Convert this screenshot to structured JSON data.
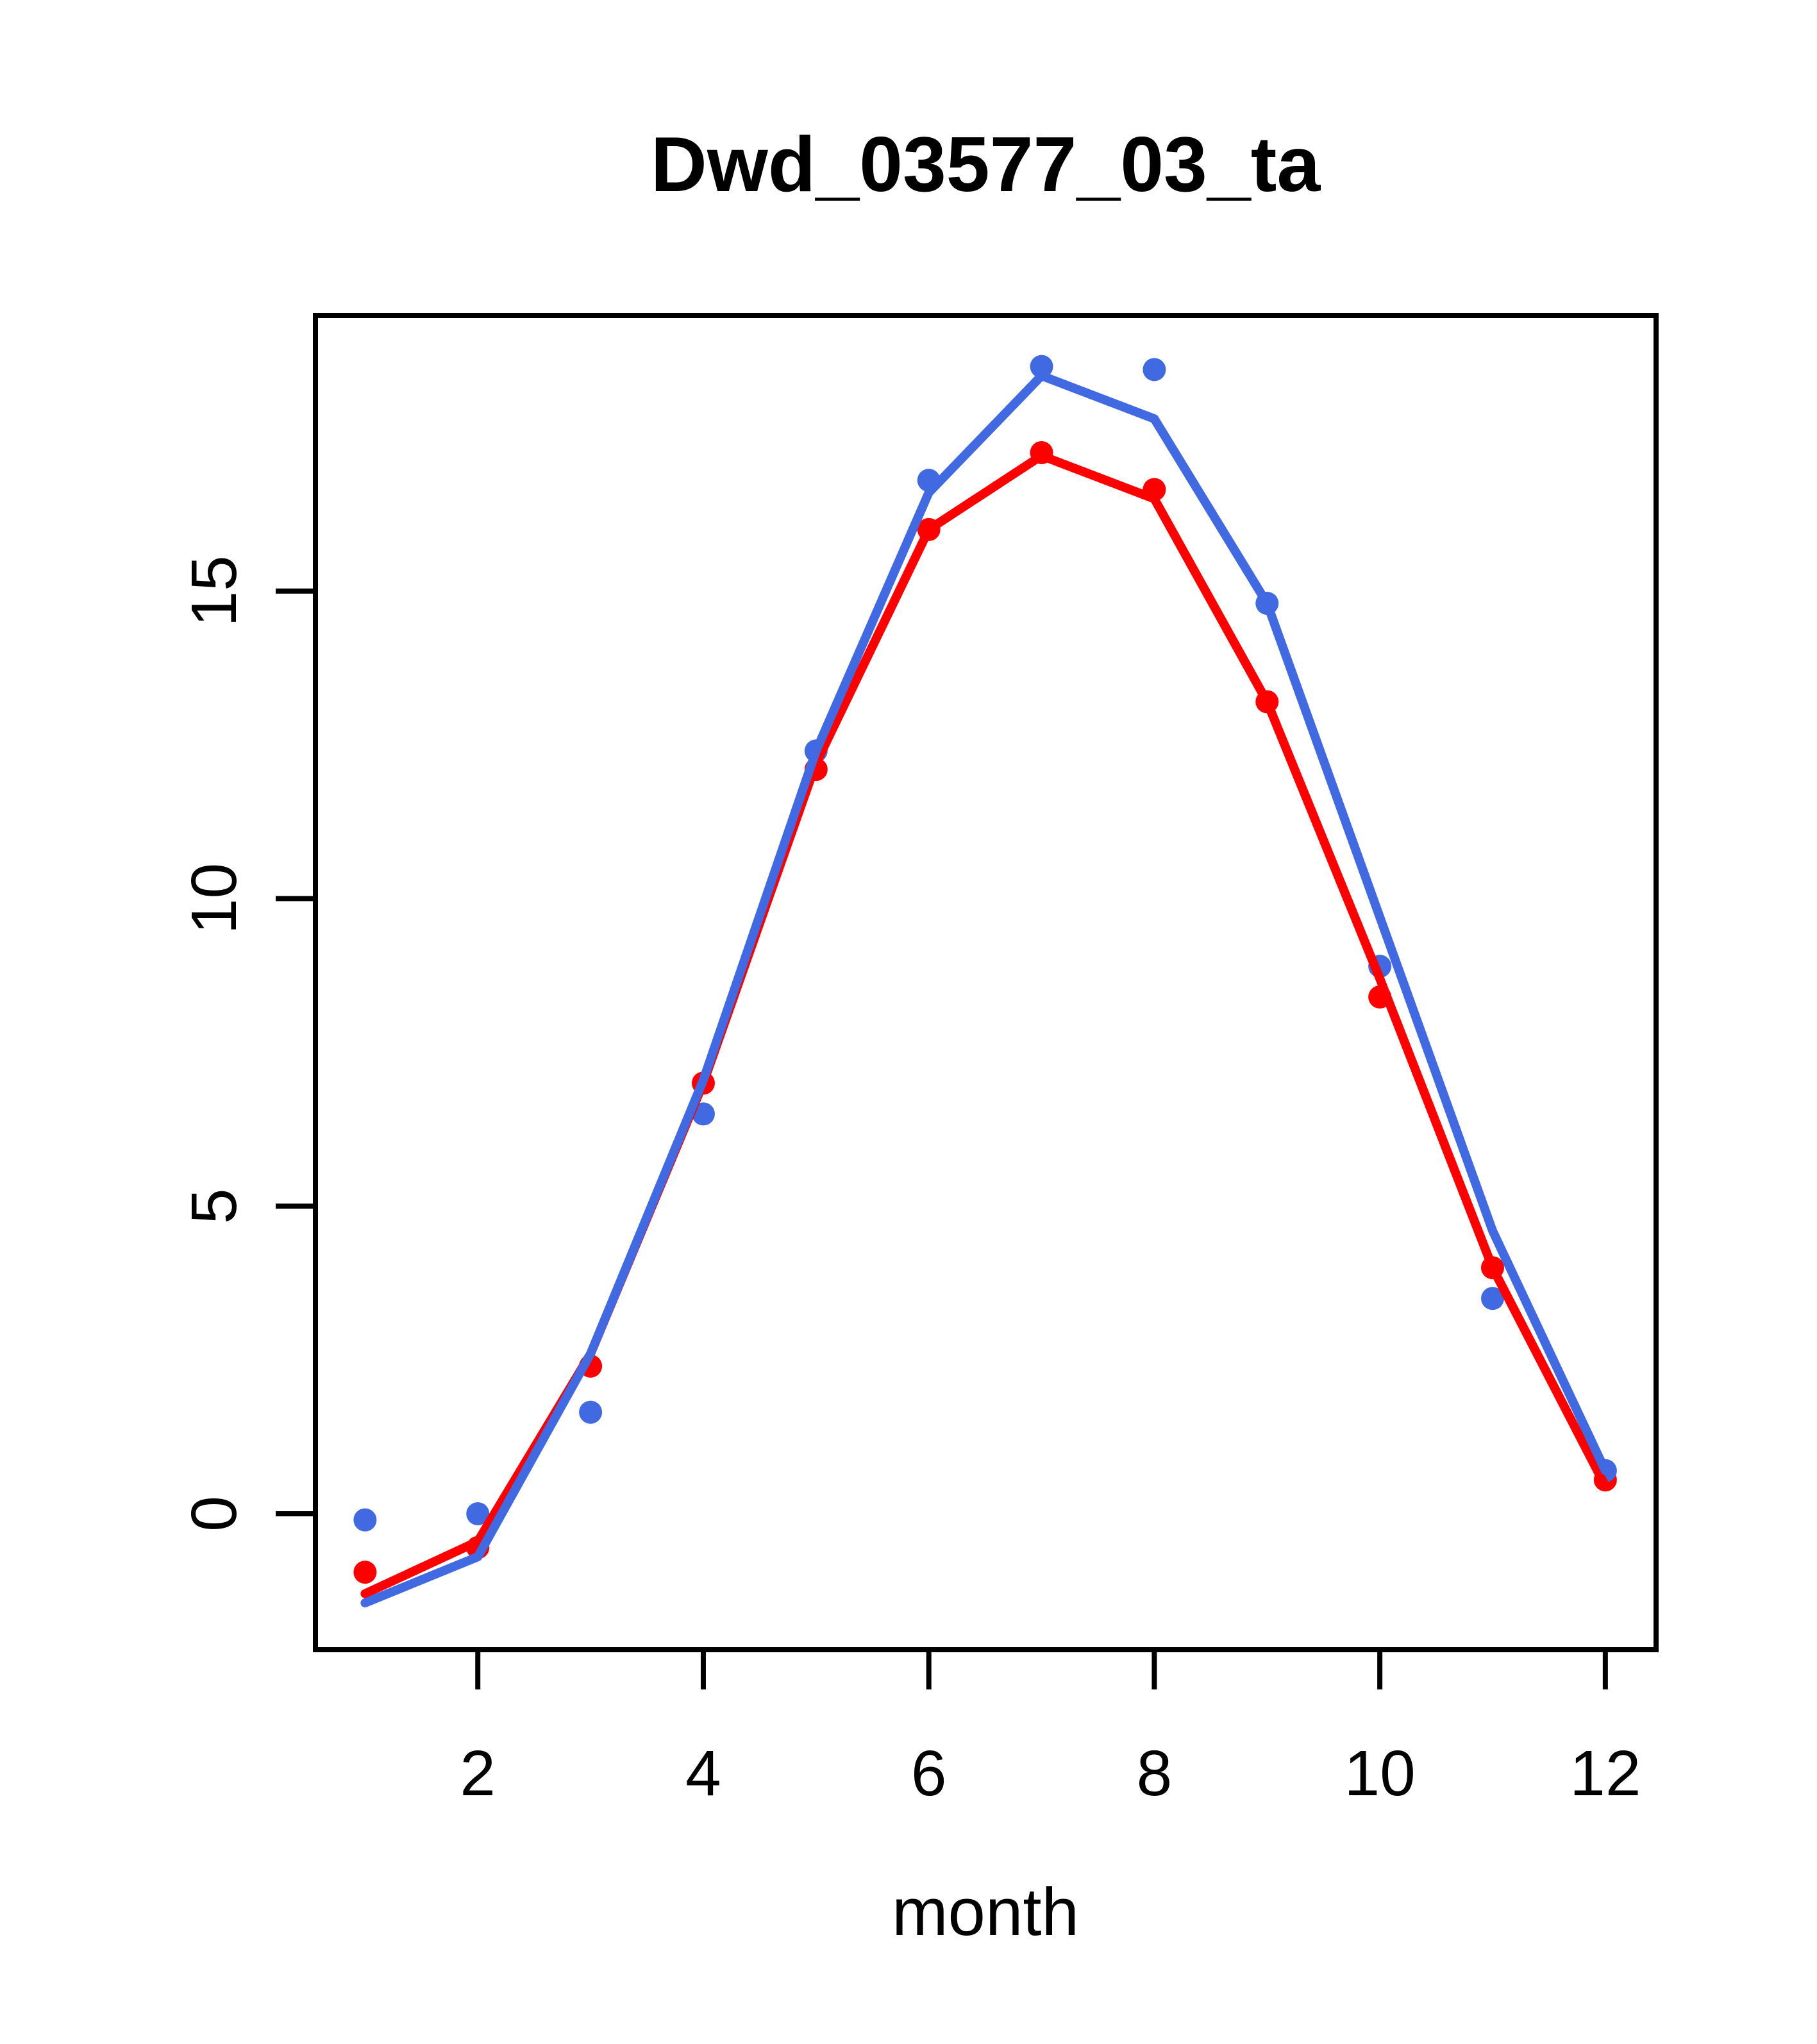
{
  "chart_data": {
    "type": "line",
    "title": "Dwd_03577_03_ta",
    "xlabel": "month",
    "ylabel": "",
    "x_ticks": [
      2,
      4,
      6,
      8,
      10,
      12
    ],
    "y_ticks": [
      0,
      5,
      10,
      15
    ],
    "xlim": [
      0.56,
      12.45
    ],
    "ylim": [
      -2.21,
      19.48
    ],
    "grid": false,
    "legend": "none",
    "x": [
      1,
      2,
      3,
      4,
      5,
      6,
      7,
      8,
      9,
      10,
      11,
      12
    ],
    "series": [
      {
        "name": "red-points",
        "kind": "points",
        "color": "#FF0000",
        "values": [
          -0.95,
          -0.55,
          2.4,
          7.0,
          12.1,
          16.0,
          17.25,
          16.65,
          13.2,
          8.4,
          4.0,
          0.55
        ]
      },
      {
        "name": "blue-points",
        "kind": "points",
        "color": "#4169E1",
        "values": [
          -0.1,
          0.0,
          1.65,
          6.5,
          12.4,
          16.8,
          18.65,
          18.6,
          14.8,
          8.9,
          3.5,
          0.7
        ]
      },
      {
        "name": "red-line",
        "kind": "line",
        "color": "#FF0000",
        "values": [
          -1.3,
          -0.45,
          2.6,
          7.0,
          12.2,
          16.0,
          17.2,
          16.5,
          13.2,
          8.7,
          4.0,
          0.45
        ]
      },
      {
        "name": "blue-line",
        "kind": "line",
        "color": "#4169E1",
        "values": [
          -1.45,
          -0.7,
          2.6,
          7.05,
          12.4,
          16.6,
          18.5,
          17.8,
          14.8,
          9.7,
          4.6,
          0.7
        ]
      }
    ]
  }
}
